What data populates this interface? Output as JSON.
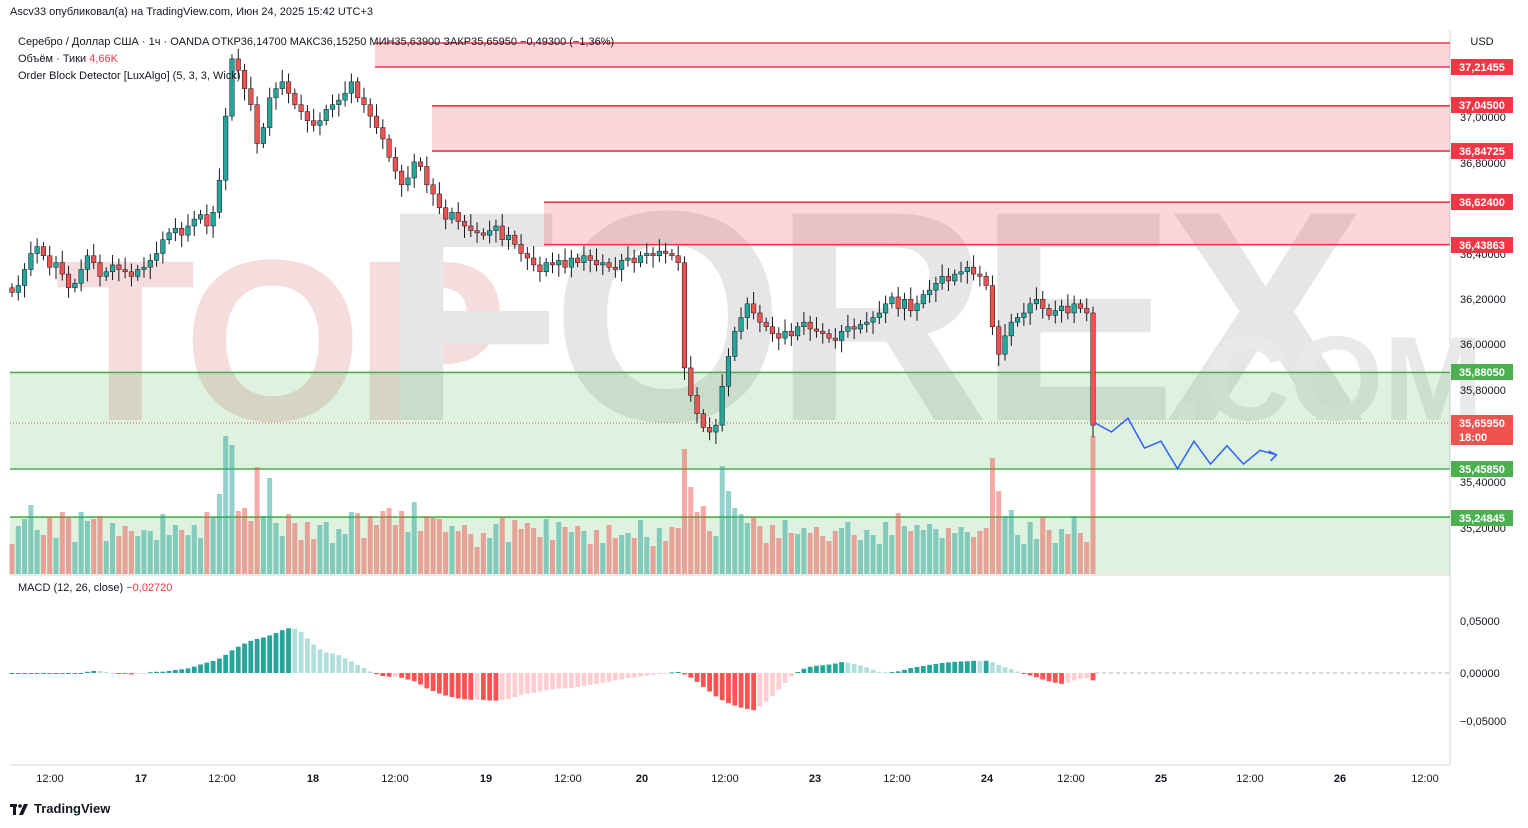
{
  "header": {
    "caption": "Ascv33 опубликовал(а) на TradingView.com, Июн 24, 2025 15:42 UTC+3"
  },
  "legend": {
    "symbol_line": "Серебро / Доллар США · 1ч · OANDA  ОТКР36,14700  МАКС36,15250  МИН35,63900  ЗАКР35,65950  −0,49300 (−1,36%)",
    "volume_label": "Объём · Тики",
    "volume_value": "4,66K",
    "indicator_line": "Order Block Detector [LuxAlgo] (5, 3, 3, Wick)"
  },
  "macd": {
    "label": "MACD (12, 26, close)",
    "value": "−0,02720"
  },
  "currency": "USD",
  "footer": {
    "brand": "TradingView"
  },
  "watermark": {
    "left": "TOP",
    "right": "FOREX",
    "suffix": ".COM"
  },
  "colors": {
    "up": "#26a69a",
    "down": "#ef5350",
    "bear_zone": "#f23645",
    "bull_zone": "#4caf50",
    "projection": "#2962ff"
  },
  "chart_data": [
    {
      "type": "candlestick",
      "title": "Серебро / Доллар США · 1ч · OANDA",
      "ylim": [
        35.0,
        37.3
      ],
      "x_ticks": [
        "12:00",
        "17",
        "12:00",
        "18",
        "12:00",
        "19",
        "12:00",
        "20",
        "12:00",
        "23",
        "12:00",
        "24",
        "12:00",
        "25",
        "12:00",
        "26",
        "12:00"
      ],
      "y_ticks": [
        "37,00000",
        "36,80000",
        "36,40000",
        "36,20000",
        "36,00000",
        "35,80000",
        "35,40000",
        "35,20000"
      ],
      "last_price": {
        "value": 35.6595,
        "label": "35,65950",
        "countdown": "18:00"
      },
      "closes": [
        36.23,
        36.26,
        36.33,
        36.4,
        36.43,
        36.39,
        36.34,
        36.36,
        36.31,
        36.25,
        36.27,
        36.33,
        36.39,
        36.36,
        36.3,
        36.32,
        36.35,
        36.33,
        36.32,
        36.3,
        36.33,
        36.34,
        36.37,
        36.4,
        36.46,
        36.49,
        36.51,
        36.48,
        36.52,
        36.55,
        36.57,
        36.52,
        36.58,
        36.72,
        37.0,
        37.25,
        37.2,
        37.12,
        37.05,
        36.88,
        36.95,
        37.08,
        37.12,
        37.15,
        37.1,
        37.05,
        37.02,
        36.98,
        36.96,
        36.98,
        37.03,
        37.05,
        37.07,
        37.1,
        37.15,
        37.08,
        37.05,
        37.0,
        36.95,
        36.9,
        36.82,
        36.76,
        36.7,
        36.73,
        36.8,
        36.78,
        36.7,
        36.66,
        36.6,
        36.55,
        36.58,
        36.54,
        36.52,
        36.5,
        36.49,
        36.48,
        36.5,
        36.52,
        36.46,
        36.48,
        36.44,
        36.4,
        36.38,
        36.35,
        36.32,
        36.36,
        36.35,
        36.37,
        36.34,
        36.38,
        36.36,
        36.39,
        36.37,
        36.35,
        36.36,
        36.34,
        36.33,
        36.37,
        36.38,
        36.36,
        36.39,
        36.4,
        36.39,
        36.41,
        36.4,
        36.39,
        36.36,
        35.9,
        35.78,
        35.7,
        35.64,
        35.62,
        35.65,
        35.82,
        35.95,
        36.06,
        36.12,
        36.18,
        36.14,
        36.1,
        36.08,
        36.05,
        36.03,
        36.06,
        36.04,
        36.08,
        36.1,
        36.07,
        36.06,
        36.05,
        36.03,
        36.02,
        36.06,
        36.08,
        36.07,
        36.09,
        36.1,
        36.12,
        36.14,
        36.18,
        36.21,
        36.16,
        36.2,
        36.15,
        36.18,
        36.22,
        36.24,
        36.27,
        36.3,
        36.28,
        36.31,
        36.32,
        36.34,
        36.31,
        36.3,
        36.26,
        36.08,
        35.96,
        36.04,
        36.1,
        36.12,
        36.14,
        36.18,
        36.2,
        36.16,
        36.13,
        36.15,
        36.17,
        36.14,
        36.18,
        36.16,
        36.14,
        35.65
      ],
      "volume_unit": "ticks",
      "order_blocks": [
        {
          "kind": "bearish",
          "top": 37.3,
          "bottom": 37.21455,
          "label": "37,21455"
        },
        {
          "kind": "bearish",
          "top": 37.045,
          "bottom": 36.84725,
          "label_top": "37,04500",
          "label_bottom": "36,84725"
        },
        {
          "kind": "bearish",
          "top": 36.624,
          "bottom": 36.43863,
          "label_top": "36,62400",
          "label_bottom": "36,43863"
        },
        {
          "kind": "bullish",
          "top": 35.8805,
          "bottom": 35.4585,
          "label_top": "35,88050",
          "label_bottom": "35,45850"
        },
        {
          "kind": "bullish",
          "top": 35.24845,
          "bottom": 35.0,
          "label_top": "35,24845"
        }
      ],
      "projection": [
        [
          0,
          35.66
        ],
        [
          1,
          35.62
        ],
        [
          2,
          35.68
        ],
        [
          3,
          35.55
        ],
        [
          4,
          35.58
        ],
        [
          5,
          35.46
        ],
        [
          6,
          35.58
        ],
        [
          7,
          35.48
        ],
        [
          8,
          35.56
        ],
        [
          9,
          35.48
        ],
        [
          10,
          35.54
        ],
        [
          11,
          35.52
        ]
      ]
    },
    {
      "type": "bar",
      "title": "MACD (12, 26, close)",
      "ylim": [
        -0.09,
        0.08
      ],
      "y_ticks": [
        "0,05000",
        "0,00000",
        "−0,05000"
      ]
    }
  ]
}
